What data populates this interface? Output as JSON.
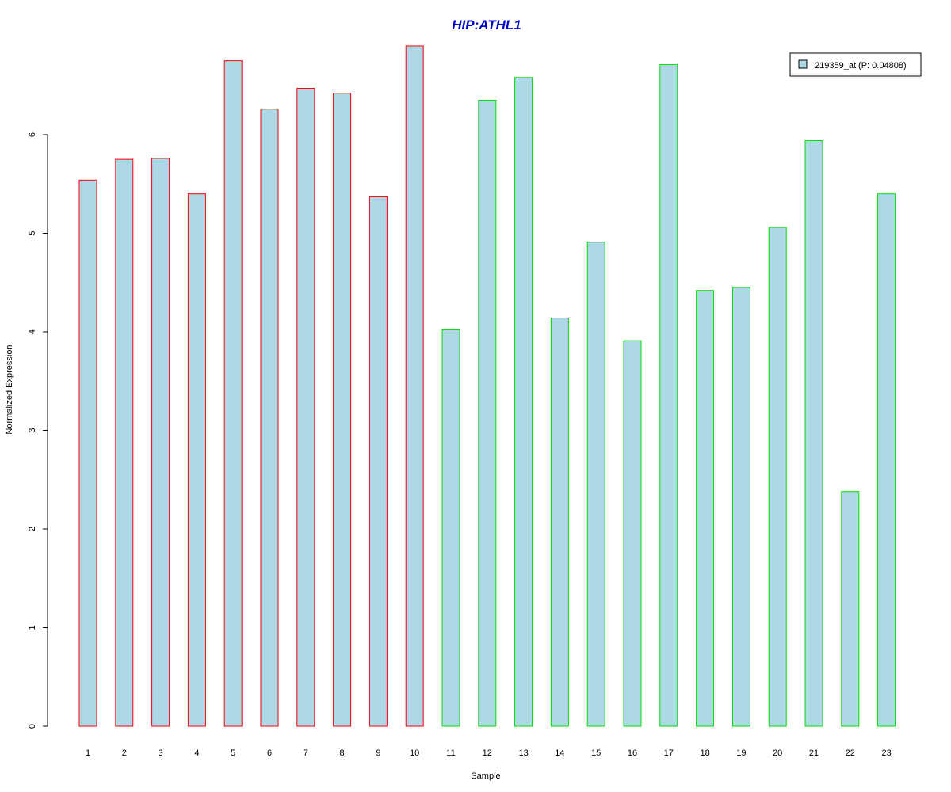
{
  "chart_data": {
    "type": "bar",
    "title": "HIP:ATHL1",
    "xlabel": "Sample",
    "ylabel": "Normalized Expression",
    "categories": [
      "1",
      "2",
      "3",
      "4",
      "5",
      "6",
      "7",
      "8",
      "9",
      "10",
      "11",
      "12",
      "13",
      "14",
      "15",
      "16",
      "17",
      "18",
      "19",
      "20",
      "21",
      "22",
      "23"
    ],
    "series": [
      {
        "name": "219359_at (P: 0.04808)",
        "values": [
          5.54,
          5.75,
          5.76,
          5.4,
          6.75,
          6.26,
          6.47,
          6.42,
          5.37,
          6.9,
          4.02,
          6.35,
          6.58,
          4.14,
          4.91,
          3.91,
          6.71,
          4.42,
          4.45,
          5.06,
          5.94,
          2.38,
          5.4
        ]
      }
    ],
    "groups": [
      1,
      1,
      1,
      1,
      1,
      1,
      1,
      1,
      1,
      1,
      2,
      2,
      2,
      2,
      2,
      2,
      2,
      2,
      2,
      2,
      2,
      2,
      2
    ],
    "ylim": [
      0,
      6.9
    ],
    "yticks": [
      "0",
      "1",
      "2",
      "3",
      "4",
      "5",
      "6"
    ],
    "grid": false,
    "legend_position": "top-right",
    "colors": {
      "title": "#0000cc",
      "bar_fill": "#add8e6",
      "group1_border": "#ff0000",
      "group2_border": "#00dd00",
      "axis": "#000000"
    }
  }
}
